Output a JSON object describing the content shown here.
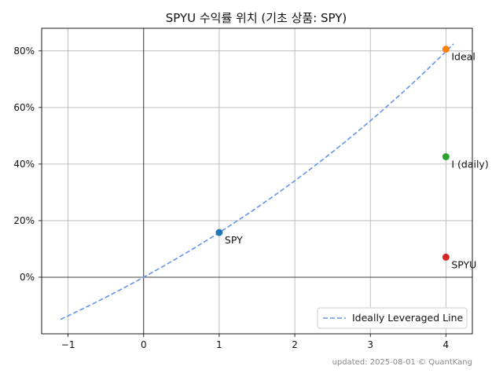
{
  "chart_data": {
    "type": "scatter",
    "title": "SPYU 수익률 위치 (기초 상품: SPY)",
    "xlabel": "",
    "ylabel": "",
    "xlim": [
      -1.35,
      4.35
    ],
    "ylim": [
      -20,
      88
    ],
    "x_ticks": [
      -1,
      0,
      1,
      2,
      3,
      4
    ],
    "x_tick_labels": [
      "−1",
      "0",
      "1",
      "2",
      "3",
      "4"
    ],
    "y_ticks": [
      0,
      20,
      40,
      60,
      80
    ],
    "y_tick_labels": [
      "0%",
      "20%",
      "40%",
      "60%",
      "80%"
    ],
    "grid": true,
    "legend_position": "bottom-right",
    "line": {
      "name": "Ideally Leveraged Line",
      "color": "#6495ed",
      "style": "dashed",
      "spy_return_pct": 15.8,
      "x_range": [
        -1.1,
        4.1
      ]
    },
    "points": [
      {
        "label": "SPY",
        "x": 1,
        "y": 15.8,
        "color": "#1f77b4"
      },
      {
        "label": "Ideal",
        "x": 4,
        "y": 80.6,
        "color": "#ff7f0e"
      },
      {
        "label": "I (daily)",
        "x": 4,
        "y": 42.6,
        "color": "#2ca02c"
      },
      {
        "label": "SPYU",
        "x": 4,
        "y": 7.1,
        "color": "#d62728"
      }
    ]
  },
  "footer": "updated: 2025-08-01 © QuantKang"
}
